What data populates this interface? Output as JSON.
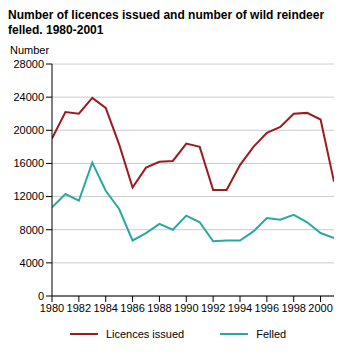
{
  "chart_data": {
    "type": "line",
    "title": "Number of licences issued and number of wild reindeer felled. 1980-2001",
    "y_label": "Number",
    "x": [
      1980,
      1981,
      1982,
      1983,
      1984,
      1985,
      1986,
      1987,
      1988,
      1989,
      1990,
      1991,
      1992,
      1993,
      1994,
      1995,
      1996,
      1997,
      1998,
      1999,
      2000,
      2001
    ],
    "series": [
      {
        "name": "Licences issued",
        "color": "#9b1b1e",
        "values": [
          19000,
          22200,
          22000,
          23900,
          22700,
          18300,
          13100,
          15500,
          16200,
          16300,
          18400,
          18000,
          12800,
          12800,
          15800,
          18000,
          19700,
          20400,
          22000,
          22100,
          21300,
          13800
        ]
      },
      {
        "name": "Felled",
        "color": "#2aa7a0",
        "values": [
          10700,
          12300,
          11500,
          16100,
          12700,
          10500,
          6700,
          7600,
          8700,
          8000,
          9700,
          8900,
          6600,
          6700,
          6700,
          7800,
          9400,
          9200,
          9800,
          8900,
          7600,
          7000
        ]
      }
    ],
    "xlim": [
      1980,
      2001
    ],
    "xticks": [
      1980,
      1982,
      1984,
      1986,
      1988,
      1990,
      1992,
      1994,
      1996,
      1998,
      2000
    ],
    "ylim": [
      0,
      28000
    ],
    "yticks": [
      0,
      4000,
      8000,
      12000,
      16000,
      20000,
      24000,
      28000
    ],
    "grid": true,
    "legend": "bottom"
  }
}
